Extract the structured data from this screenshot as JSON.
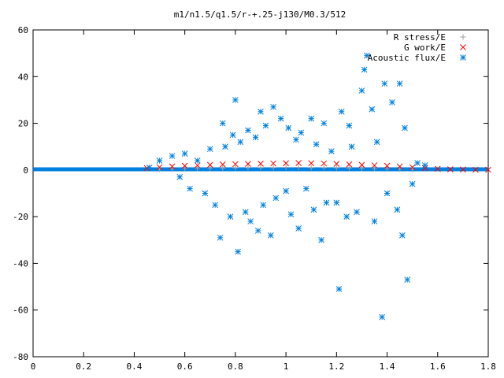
{
  "chart_data": {
    "type": "scatter",
    "title": "m1/n1.5/q1.5/r-+.25-j130/M0.3/512",
    "xlabel": "",
    "ylabel": "",
    "xlim": [
      0,
      1.8
    ],
    "ylim": [
      -80,
      60
    ],
    "xticks": [
      0,
      0.2,
      0.4,
      0.6,
      0.8,
      1,
      1.2,
      1.4,
      1.6,
      1.8
    ],
    "yticks": [
      -80,
      -60,
      -40,
      -20,
      0,
      20,
      40,
      60
    ],
    "xtick_labels": [
      "0",
      "0.2",
      "0.4",
      "0.6",
      "0.8",
      "1",
      "1.2",
      "1.4",
      "1.6",
      "1.8"
    ],
    "ytick_labels": [
      "-80",
      "-60",
      "-40",
      "-20",
      "0",
      "20",
      "40",
      "60"
    ],
    "grid": false,
    "legend_position": "top-right",
    "series": [
      {
        "name": "R stress/E",
        "marker": "plus",
        "color": "#a0a0a4",
        "x": [
          0.5,
          0.55,
          0.6,
          0.65,
          0.7,
          0.75,
          0.8,
          0.85,
          0.9,
          0.95,
          1.0,
          1.05,
          1.1,
          1.15,
          1.2,
          1.25,
          1.3,
          1.35,
          1.4,
          1.45,
          1.5
        ],
        "y": [
          0.3,
          0.4,
          0.5,
          0.6,
          0.7,
          0.8,
          0.9,
          1.0,
          1.0,
          1.0,
          1.1,
          1.1,
          1.0,
          1.0,
          0.9,
          0.8,
          0.7,
          0.6,
          0.5,
          0.4,
          0.3
        ]
      },
      {
        "name": "G work/E",
        "marker": "cross",
        "color": "#ff0000",
        "x": [
          0.45,
          0.5,
          0.55,
          0.6,
          0.65,
          0.7,
          0.75,
          0.8,
          0.85,
          0.9,
          0.95,
          1.0,
          1.05,
          1.1,
          1.15,
          1.2,
          1.25,
          1.3,
          1.35,
          1.4,
          1.45,
          1.5,
          1.55,
          1.6,
          1.65,
          1.7,
          1.75,
          1.8
        ],
        "y": [
          0.8,
          1.2,
          1.5,
          1.8,
          2.0,
          2.2,
          2.4,
          2.5,
          2.6,
          2.7,
          2.8,
          2.9,
          3.0,
          2.9,
          2.8,
          2.6,
          2.4,
          2.2,
          2.0,
          1.8,
          1.5,
          1.2,
          0.8,
          0.5,
          0.3,
          0.2,
          0.1,
          0.1
        ]
      },
      {
        "name": "Acoustic flux/E",
        "marker": "star",
        "color": "#0080e0",
        "baseline": {
          "x_start": 0,
          "x_end": 1.8,
          "y": 0.3
        },
        "x": [
          0.46,
          0.5,
          0.55,
          0.58,
          0.6,
          0.62,
          0.65,
          0.68,
          0.7,
          0.72,
          0.74,
          0.75,
          0.76,
          0.78,
          0.79,
          0.8,
          0.81,
          0.82,
          0.84,
          0.85,
          0.86,
          0.88,
          0.89,
          0.9,
          0.91,
          0.92,
          0.94,
          0.95,
          0.96,
          0.98,
          1.0,
          1.01,
          1.02,
          1.04,
          1.05,
          1.06,
          1.08,
          1.1,
          1.11,
          1.12,
          1.14,
          1.15,
          1.16,
          1.18,
          1.2,
          1.21,
          1.22,
          1.24,
          1.25,
          1.26,
          1.28,
          1.3,
          1.31,
          1.32,
          1.34,
          1.35,
          1.36,
          1.38,
          1.39,
          1.4,
          1.42,
          1.44,
          1.45,
          1.46,
          1.47,
          1.48,
          1.5,
          1.52,
          1.55
        ],
        "y": [
          1,
          4,
          6,
          -3,
          7,
          -8,
          4,
          -10,
          9,
          -15,
          -29,
          20,
          10,
          -20,
          15,
          30,
          -35,
          12,
          -18,
          17,
          -22,
          14,
          -26,
          25,
          -15,
          19,
          -28,
          27,
          -12,
          22,
          -9,
          18,
          -19,
          13,
          -25,
          16,
          -8,
          22,
          -17,
          11,
          -30,
          20,
          -14,
          8,
          -14,
          -51,
          25,
          -20,
          19,
          10,
          -18,
          34,
          43,
          49,
          26,
          -22,
          12,
          -63,
          37,
          -10,
          29,
          -17,
          37,
          -28,
          18,
          -47,
          -6,
          3,
          2
        ]
      }
    ]
  }
}
